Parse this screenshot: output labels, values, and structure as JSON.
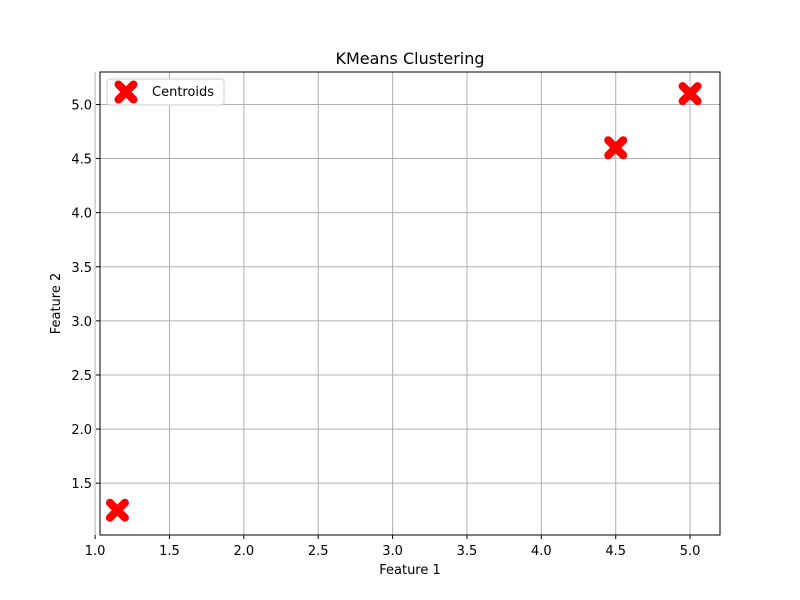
{
  "chart_data": {
    "type": "scatter",
    "title": "KMeans Clustering",
    "xlabel": "Feature 1",
    "ylabel": "Feature 2",
    "xlim": [
      1.033,
      5.201
    ],
    "ylim": [
      1.021,
      5.3
    ],
    "xticks": [
      "1.0",
      "1.5",
      "2.0",
      "2.5",
      "3.0",
      "3.5",
      "4.0",
      "4.5",
      "5.0"
    ],
    "yticks": [
      "1.5",
      "2.0",
      "2.5",
      "3.0",
      "3.5",
      "4.0",
      "4.5",
      "5.0"
    ],
    "grid": true,
    "legend_position": "top-left",
    "series": [
      {
        "name": "Centroids",
        "marker": "X",
        "color": "#ff0000",
        "points": [
          {
            "x": 1.15,
            "y": 1.25
          },
          {
            "x": 4.5,
            "y": 4.6
          },
          {
            "x": 5.0,
            "y": 5.1
          }
        ]
      }
    ]
  }
}
